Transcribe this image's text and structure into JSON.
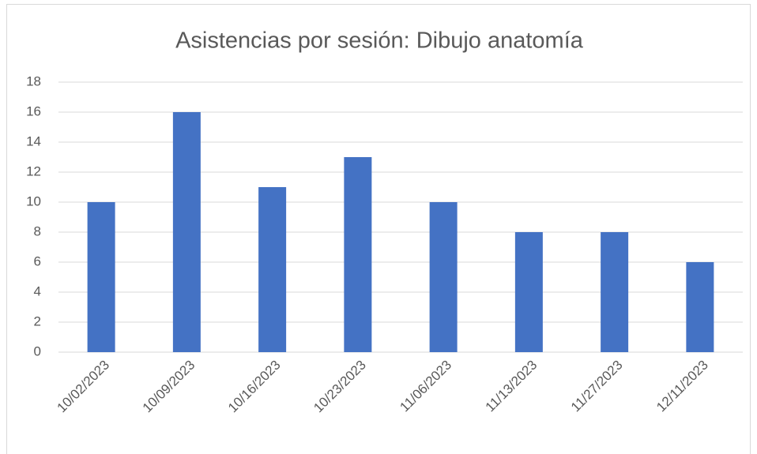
{
  "chart_data": {
    "type": "bar",
    "title": "Asistencias por sesión: Dibujo anatomía",
    "categories": [
      "10/02/2023",
      "10/09/2023",
      "10/16/2023",
      "10/23/2023",
      "11/06/2023",
      "11/13/2023",
      "11/27/2023",
      "12/11/2023"
    ],
    "values": [
      10,
      16,
      11,
      13,
      10,
      8,
      8,
      6
    ],
    "color": "#4472c4",
    "ylim": [
      0,
      18
    ],
    "yticks": [
      0,
      2,
      4,
      6,
      8,
      10,
      12,
      14,
      16,
      18
    ],
    "grid": true
  }
}
